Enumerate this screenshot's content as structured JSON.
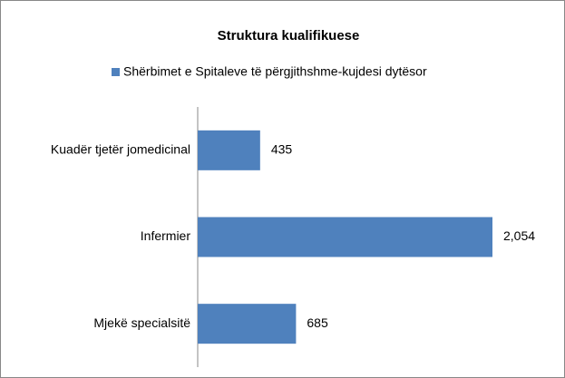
{
  "chart_data": {
    "type": "bar",
    "orientation": "horizontal",
    "title": "Struktura kualifikuese",
    "categories": [
      "Kuadër tjetër jomedicinal",
      "Infermier",
      "Mjekë specialsitë"
    ],
    "series": [
      {
        "name": "Shërbimet e Spitaleve të përgjithshme-kujdesi dytësor",
        "color": "#4f81bd",
        "values": [
          435,
          2054,
          685
        ],
        "value_labels": [
          "435",
          "2,054",
          "685"
        ]
      }
    ],
    "legend": "top"
  }
}
